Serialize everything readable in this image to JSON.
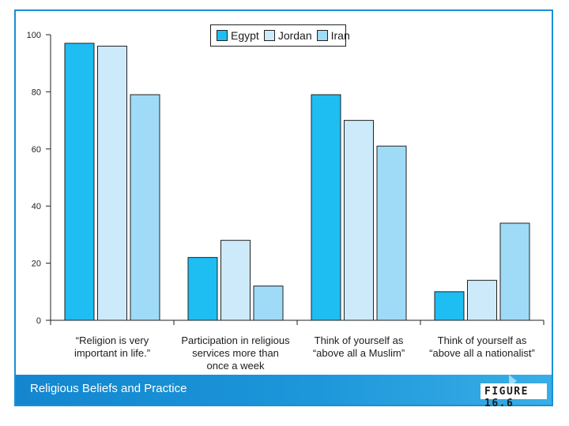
{
  "chart_data": {
    "type": "bar",
    "categories": [
      [
        "“Religion is very",
        "important in life.”"
      ],
      [
        "Participation in religious",
        "services more than",
        "once a week"
      ],
      [
        "Think of yourself as",
        "“above all a Muslim”"
      ],
      [
        "Think of yourself as",
        "“above all a nationalist”"
      ]
    ],
    "series": [
      {
        "name": "Egypt",
        "color": "#1ebdf2",
        "values": [
          97,
          22,
          79,
          10
        ]
      },
      {
        "name": "Jordan",
        "color": "#cdeafb",
        "values": [
          96,
          28,
          70,
          14
        ]
      },
      {
        "name": "Iran",
        "color": "#9fdbf7",
        "values": [
          79,
          12,
          61,
          34
        ]
      }
    ],
    "yticks": [
      0,
      20,
      40,
      60,
      80,
      100
    ],
    "ylim": [
      0,
      100
    ],
    "title": "",
    "xlabel": "",
    "ylabel": ""
  },
  "footer": {
    "title": "Religious Beliefs and Practice",
    "figure": "FIGURE 16.6"
  }
}
